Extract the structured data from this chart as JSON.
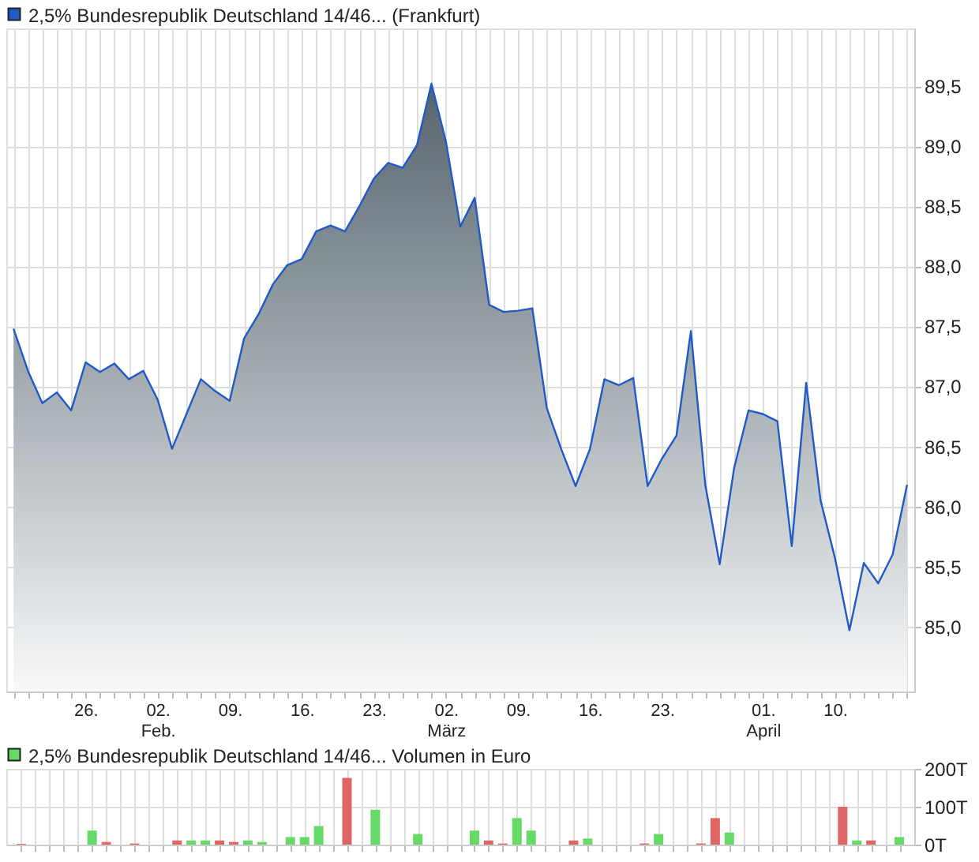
{
  "chart_data": [
    {
      "type": "area",
      "categories": [
        null,
        null,
        null,
        null,
        null,
        "26.",
        null,
        null,
        null,
        null,
        "02.\nFeb.",
        null,
        null,
        null,
        null,
        "09.",
        null,
        null,
        null,
        null,
        "16.",
        null,
        null,
        null,
        null,
        "23.",
        null,
        null,
        null,
        null,
        "02.\nMärz",
        null,
        null,
        null,
        null,
        "09.",
        null,
        null,
        null,
        null,
        "16.",
        null,
        null,
        null,
        null,
        "23.",
        null,
        null,
        null,
        null,
        null,
        null,
        "01.\nApril",
        null,
        null,
        null,
        null,
        "10.",
        null,
        null,
        null,
        null,
        null
      ],
      "series": [
        {
          "name": "2,5% Bundesrepublik Deutschland 14/46... (Frankfurt)",
          "color": "#1f5bc6",
          "values": [
            87.48,
            87.13,
            86.86,
            86.95,
            86.8,
            87.2,
            87.12,
            87.19,
            87.06,
            87.13,
            86.89,
            86.48,
            86.77,
            87.06,
            86.96,
            86.88,
            87.4,
            87.6,
            87.85,
            88.01,
            88.06,
            88.29,
            88.34,
            88.29,
            88.5,
            88.73,
            88.86,
            88.82,
            89.01,
            89.52,
            89.04,
            88.33,
            88.57,
            87.68,
            87.62,
            87.63,
            87.65,
            86.82,
            86.48,
            86.17,
            86.48,
            87.06,
            87.01,
            87.07,
            86.17,
            86.4,
            86.59,
            87.46,
            86.18,
            85.52,
            86.32,
            86.8,
            86.77,
            86.71,
            85.67,
            87.03,
            86.05,
            85.57,
            84.97,
            85.53,
            85.36,
            85.6,
            86.18
          ]
        }
      ],
      "ylim": [
        84.46,
        89.98
      ],
      "yticks": [
        {
          "value": 85,
          "label": "85,0"
        },
        {
          "value": 85.5,
          "label": "85,5"
        },
        {
          "value": 86,
          "label": "86,0"
        },
        {
          "value": 86.5,
          "label": "86,5"
        },
        {
          "value": 87,
          "label": "87,0"
        },
        {
          "value": 87.5,
          "label": "87,5"
        },
        {
          "value": 88,
          "label": "88,0"
        },
        {
          "value": 88.5,
          "label": "88,5"
        },
        {
          "value": 89,
          "label": "89,0"
        },
        {
          "value": 89.5,
          "label": "89,5"
        }
      ],
      "grid": true,
      "legend": "top left"
    },
    {
      "type": "bar",
      "categories": [
        null,
        null,
        null,
        null,
        null,
        null,
        null,
        null,
        null,
        null,
        null,
        null,
        null,
        null,
        null,
        null,
        null,
        null,
        null,
        null,
        null,
        null,
        null,
        null,
        null,
        null,
        null,
        null,
        null,
        null,
        null,
        null,
        null,
        null,
        null,
        null,
        null,
        null,
        null,
        null,
        null,
        null,
        null,
        null,
        null,
        null,
        null,
        null,
        null,
        null,
        null,
        null,
        null,
        null,
        null,
        null,
        null,
        null,
        null,
        null,
        null,
        null,
        null
      ],
      "series": [
        {
          "name": "2,5% Bundesrepublik Deutschland 14/46... Volumen in Euro",
          "color": "#66d966",
          "values": [
            2,
            null,
            null,
            null,
            null,
            37,
            7,
            null,
            3,
            null,
            null,
            11,
            11,
            11,
            11,
            7,
            11,
            7,
            null,
            20,
            20,
            49,
            null,
            176,
            null,
            92,
            null,
            null,
            28,
            null,
            null,
            null,
            37,
            11,
            3,
            70,
            37,
            null,
            null,
            11,
            16,
            null,
            null,
            null,
            3,
            28,
            null,
            null,
            3,
            70,
            32,
            null,
            null,
            null,
            null,
            null,
            null,
            null,
            100,
            11,
            11,
            null,
            20
          ],
          "colors": [
            "#e06666",
            null,
            null,
            null,
            null,
            "#66d966",
            "#e06666",
            null,
            "#e06666",
            null,
            null,
            "#e06666",
            "#66d966",
            "#66d966",
            "#e06666",
            "#e06666",
            "#66d966",
            "#66d966",
            null,
            "#66d966",
            "#66d966",
            "#66d966",
            null,
            "#e06666",
            null,
            "#66d966",
            null,
            null,
            "#66d966",
            null,
            null,
            null,
            "#66d966",
            "#e06666",
            "#e06666",
            "#66d966",
            "#66d966",
            null,
            null,
            "#e06666",
            "#66d966",
            null,
            null,
            null,
            "#e06666",
            "#66d966",
            null,
            null,
            "#e06666",
            "#e06666",
            "#66d966",
            null,
            null,
            null,
            null,
            null,
            null,
            null,
            "#e06666",
            "#66d966",
            "#e06666",
            null,
            "#66d966"
          ]
        }
      ],
      "ylim": [
        0,
        200
      ],
      "yticks": [
        {
          "value": 0,
          "label": "0T"
        },
        {
          "value": 100,
          "label": "100T"
        },
        {
          "value": 200,
          "label": "200T"
        }
      ],
      "grid": true,
      "legend": "top left",
      "tick_labels": "y"
    }
  ]
}
